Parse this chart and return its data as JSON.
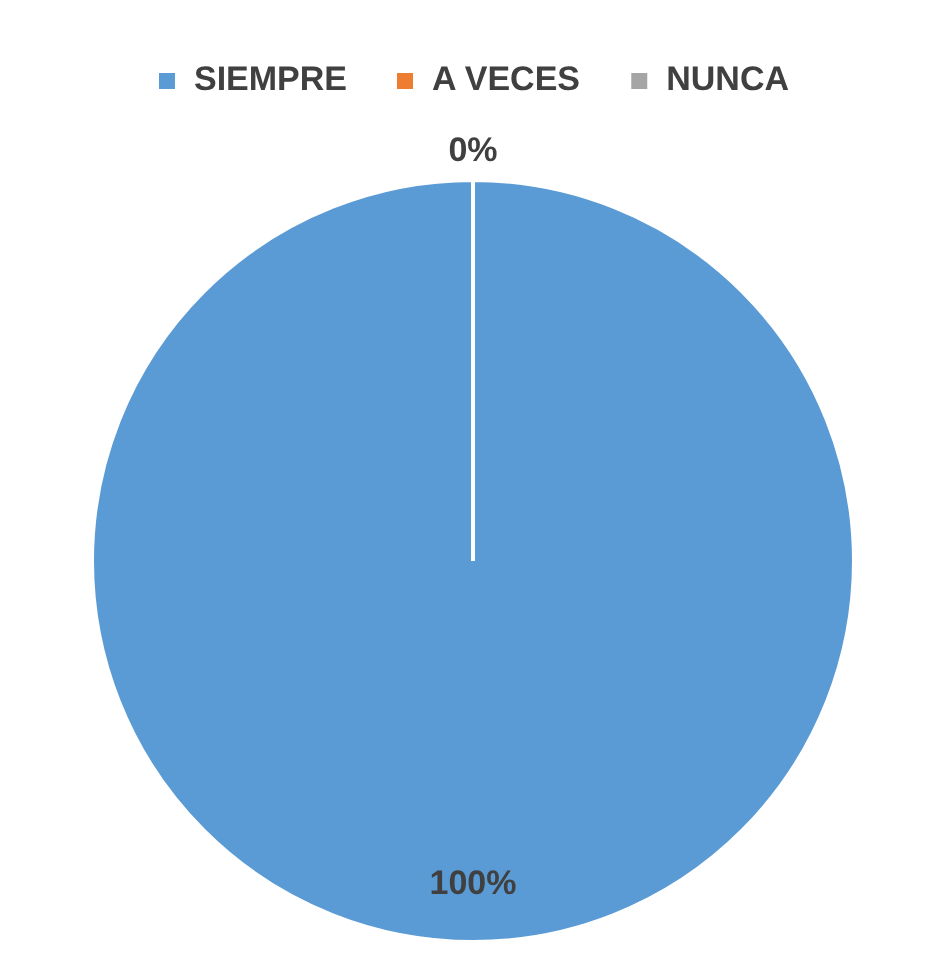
{
  "chart_data": {
    "type": "pie",
    "categories": [
      "SIEMPRE",
      "A VECES",
      "NUNCA"
    ],
    "values": [
      100,
      0,
      0
    ],
    "colors": [
      "#5b9bd5",
      "#ed7d31",
      "#a5a5a5"
    ],
    "value_labels": [
      "100%",
      "0%",
      null
    ],
    "legend": "top"
  }
}
